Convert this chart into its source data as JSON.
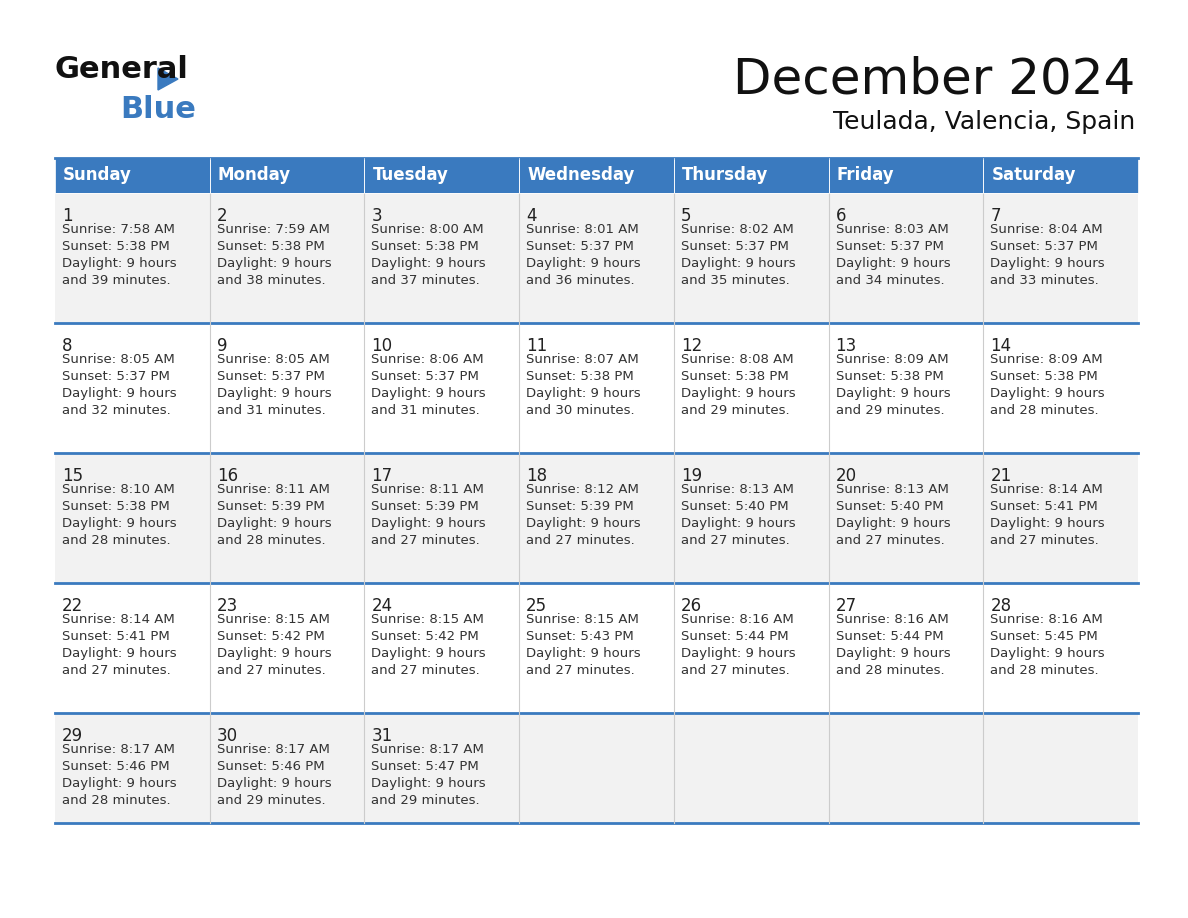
{
  "title": "December 2024",
  "subtitle": "Teulada, Valencia, Spain",
  "header_bg": "#3a7abf",
  "header_text": "#ffffff",
  "days_of_week": [
    "Sunday",
    "Monday",
    "Tuesday",
    "Wednesday",
    "Thursday",
    "Friday",
    "Saturday"
  ],
  "row1_bg": "#f2f2f2",
  "row2_bg": "#ffffff",
  "cell_border": "#c0c0c0",
  "header_border": "#2a5a9f",
  "day_num_color": "#222222",
  "day_text_color": "#333333",
  "calendar": [
    [
      {
        "day": 1,
        "sunrise": "7:58 AM",
        "sunset": "5:38 PM",
        "daylight": "9 hours and 39 minutes."
      },
      {
        "day": 2,
        "sunrise": "7:59 AM",
        "sunset": "5:38 PM",
        "daylight": "9 hours and 38 minutes."
      },
      {
        "day": 3,
        "sunrise": "8:00 AM",
        "sunset": "5:38 PM",
        "daylight": "9 hours and 37 minutes."
      },
      {
        "day": 4,
        "sunrise": "8:01 AM",
        "sunset": "5:37 PM",
        "daylight": "9 hours and 36 minutes."
      },
      {
        "day": 5,
        "sunrise": "8:02 AM",
        "sunset": "5:37 PM",
        "daylight": "9 hours and 35 minutes."
      },
      {
        "day": 6,
        "sunrise": "8:03 AM",
        "sunset": "5:37 PM",
        "daylight": "9 hours and 34 minutes."
      },
      {
        "day": 7,
        "sunrise": "8:04 AM",
        "sunset": "5:37 PM",
        "daylight": "9 hours and 33 minutes."
      }
    ],
    [
      {
        "day": 8,
        "sunrise": "8:05 AM",
        "sunset": "5:37 PM",
        "daylight": "9 hours and 32 minutes."
      },
      {
        "day": 9,
        "sunrise": "8:05 AM",
        "sunset": "5:37 PM",
        "daylight": "9 hours and 31 minutes."
      },
      {
        "day": 10,
        "sunrise": "8:06 AM",
        "sunset": "5:37 PM",
        "daylight": "9 hours and 31 minutes."
      },
      {
        "day": 11,
        "sunrise": "8:07 AM",
        "sunset": "5:38 PM",
        "daylight": "9 hours and 30 minutes."
      },
      {
        "day": 12,
        "sunrise": "8:08 AM",
        "sunset": "5:38 PM",
        "daylight": "9 hours and 29 minutes."
      },
      {
        "day": 13,
        "sunrise": "8:09 AM",
        "sunset": "5:38 PM",
        "daylight": "9 hours and 29 minutes."
      },
      {
        "day": 14,
        "sunrise": "8:09 AM",
        "sunset": "5:38 PM",
        "daylight": "9 hours and 28 minutes."
      }
    ],
    [
      {
        "day": 15,
        "sunrise": "8:10 AM",
        "sunset": "5:38 PM",
        "daylight": "9 hours and 28 minutes."
      },
      {
        "day": 16,
        "sunrise": "8:11 AM",
        "sunset": "5:39 PM",
        "daylight": "9 hours and 28 minutes."
      },
      {
        "day": 17,
        "sunrise": "8:11 AM",
        "sunset": "5:39 PM",
        "daylight": "9 hours and 27 minutes."
      },
      {
        "day": 18,
        "sunrise": "8:12 AM",
        "sunset": "5:39 PM",
        "daylight": "9 hours and 27 minutes."
      },
      {
        "day": 19,
        "sunrise": "8:13 AM",
        "sunset": "5:40 PM",
        "daylight": "9 hours and 27 minutes."
      },
      {
        "day": 20,
        "sunrise": "8:13 AM",
        "sunset": "5:40 PM",
        "daylight": "9 hours and 27 minutes."
      },
      {
        "day": 21,
        "sunrise": "8:14 AM",
        "sunset": "5:41 PM",
        "daylight": "9 hours and 27 minutes."
      }
    ],
    [
      {
        "day": 22,
        "sunrise": "8:14 AM",
        "sunset": "5:41 PM",
        "daylight": "9 hours and 27 minutes."
      },
      {
        "day": 23,
        "sunrise": "8:15 AM",
        "sunset": "5:42 PM",
        "daylight": "9 hours and 27 minutes."
      },
      {
        "day": 24,
        "sunrise": "8:15 AM",
        "sunset": "5:42 PM",
        "daylight": "9 hours and 27 minutes."
      },
      {
        "day": 25,
        "sunrise": "8:15 AM",
        "sunset": "5:43 PM",
        "daylight": "9 hours and 27 minutes."
      },
      {
        "day": 26,
        "sunrise": "8:16 AM",
        "sunset": "5:44 PM",
        "daylight": "9 hours and 27 minutes."
      },
      {
        "day": 27,
        "sunrise": "8:16 AM",
        "sunset": "5:44 PM",
        "daylight": "9 hours and 28 minutes."
      },
      {
        "day": 28,
        "sunrise": "8:16 AM",
        "sunset": "5:45 PM",
        "daylight": "9 hours and 28 minutes."
      }
    ],
    [
      {
        "day": 29,
        "sunrise": "8:17 AM",
        "sunset": "5:46 PM",
        "daylight": "9 hours and 28 minutes."
      },
      {
        "day": 30,
        "sunrise": "8:17 AM",
        "sunset": "5:46 PM",
        "daylight": "9 hours and 29 minutes."
      },
      {
        "day": 31,
        "sunrise": "8:17 AM",
        "sunset": "5:47 PM",
        "daylight": "9 hours and 29 minutes."
      },
      null,
      null,
      null,
      null
    ]
  ],
  "logo_text_general": "General",
  "logo_text_blue": "Blue",
  "logo_triangle_color": "#3a7abf"
}
